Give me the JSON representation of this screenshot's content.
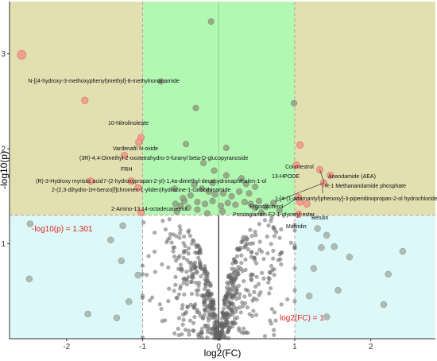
{
  "chart_data": {
    "type": "scatter",
    "xlabel": "log2(FC)",
    "ylabel": "-log10(p)",
    "xlim": [
      -2.75,
      2.85
    ],
    "ylim": [
      0,
      3.55
    ],
    "x_ticks": [
      -2,
      -1,
      0,
      1,
      2
    ],
    "y_ticks": [
      1,
      2,
      3
    ],
    "x_tick_labels": [
      "-2",
      "-1",
      "0",
      "1",
      "2"
    ],
    "y_tick_labels": [
      "1",
      "2",
      "3"
    ],
    "thresholds": {
      "p_line": 1.301,
      "p_label": "-log10(p) = 1.301",
      "fc_lines": [
        -1,
        1
      ],
      "fc_label": "log2(FC) = 1"
    },
    "colors": {
      "top_region": "#e2dfb0",
      "bottom_region": "#dcf8f8",
      "middle_band": "#b2f7b2",
      "highlight_point": "#f0a090",
      "significant_point": "#8e9a7e",
      "nonsignificant_point": "#6a6a6a",
      "threshold_line": "#c89a9a",
      "threshold_text": "#e0201a"
    },
    "highlighted": [
      {
        "name": "N-[(4-hydroxy-3-methoxyphenyl)methyl]-8-methylnonanamide",
        "x": -2.59,
        "y": 2.99
      },
      {
        "name": "10-Nitrolinoleate",
        "x": -1.76,
        "y": 2.51
      },
      {
        "name": "Vardenafil N-oxide",
        "x": -1.02,
        "y": 2.12
      },
      {
        "name": "(3R)-4,4-Dimethyl-2-oxotetrahydro-3-furanyl beta-D-glucopyranoside",
        "x": -1.05,
        "y": 2.07
      },
      {
        "name": "FRH",
        "x": -1.24,
        "y": 1.93
      },
      {
        "name": "(R)-3-Hydroxy myristic acid",
        "x": -1.68,
        "y": 1.66
      },
      {
        "name": "7-(2-hydroxypropan-2-yl)-1,4a-dimethyl-decahydronaphthalen-1-ol",
        "x": -1.15,
        "y": 1.66
      },
      {
        "name": "2-(2,3-dihydro-1H-benzo[f]chromen-1-yliden)hydrazine-1-carbothioamide",
        "x": -1.06,
        "y": 1.59
      },
      {
        "name": "2-Amino-13,14-octadecanetriol",
        "x": -1.02,
        "y": 1.33
      },
      {
        "name": "Coumestrol",
        "x": 1.07,
        "y": 2.04
      },
      {
        "name": "13-HPODE",
        "x": 1.02,
        "y": 1.83
      },
      {
        "name": "Anandamide (AEA)",
        "x": 1.33,
        "y": 1.78
      },
      {
        "name": "R-1 Methanandamide phosphate",
        "x": 1.47,
        "y": 1.72
      },
      {
        "name": "1-[4-(1-adamantyl)phenoxy]-3-piperidinopropan-2-ol hydrochloride",
        "x": 1.38,
        "y": 1.64
      },
      {
        "name": "Ergocalciferol",
        "x": 1.05,
        "y": 1.49
      },
      {
        "name": "Prostaglandin E2-1-glyceryl ester",
        "x": 1.07,
        "y": 1.44
      },
      {
        "name": "Betulin",
        "x": 1.16,
        "y": 1.42
      },
      {
        "name": "Malvidin",
        "x": 1.05,
        "y": 1.31
      }
    ],
    "significant_points": [
      [
        -0.1,
        3.34
      ],
      [
        -0.76,
        2.71
      ],
      [
        -0.3,
        2.43
      ],
      [
        0.99,
        2.48
      ],
      [
        -0.43,
        2.05
      ],
      [
        0.1,
        2.01
      ],
      [
        -0.06,
        1.77
      ],
      [
        0.1,
        1.72
      ],
      [
        0.3,
        1.69
      ],
      [
        -0.2,
        1.85
      ],
      [
        -0.32,
        1.62
      ],
      [
        -0.22,
        1.58
      ],
      [
        -0.13,
        1.55
      ],
      [
        -0.05,
        1.52
      ],
      [
        0.06,
        1.53
      ],
      [
        0.17,
        1.5
      ],
      [
        0.27,
        1.55
      ],
      [
        0.4,
        1.53
      ],
      [
        0.48,
        1.6
      ],
      [
        -0.37,
        1.51
      ],
      [
        -0.45,
        1.45
      ],
      [
        -0.57,
        1.42
      ],
      [
        -0.55,
        1.34
      ],
      [
        -0.4,
        1.38
      ],
      [
        -0.5,
        1.4
      ],
      [
        -0.47,
        1.48
      ],
      [
        -0.28,
        1.44
      ],
      [
        -0.18,
        1.42
      ],
      [
        -0.08,
        1.45
      ],
      [
        0.03,
        1.4
      ],
      [
        0.12,
        1.43
      ],
      [
        0.22,
        1.41
      ],
      [
        0.34,
        1.44
      ],
      [
        0.42,
        1.42
      ],
      [
        0.53,
        1.45
      ],
      [
        0.62,
        1.39
      ],
      [
        0.72,
        1.43
      ],
      [
        0.8,
        1.35
      ],
      [
        0.05,
        1.34
      ],
      [
        -0.15,
        1.32
      ],
      [
        0.56,
        1.33
      ],
      [
        -0.28,
        1.36
      ],
      [
        -0.08,
        1.64
      ],
      [
        0.36,
        1.63
      ],
      [
        -0.58,
        1.58
      ],
      [
        0.48,
        1.38
      ]
    ],
    "nonsignificant_points": [
      [
        -2.48,
        1.21
      ],
      [
        -2.49,
        0.63
      ],
      [
        -1.42,
        1.04
      ],
      [
        -1.72,
        0.26
      ],
      [
        -1.18,
        0.39
      ],
      [
        -1.34,
        0.22
      ],
      [
        1.3,
        1.16
      ],
      [
        1.42,
        1.09
      ],
      [
        1.72,
        0.86
      ],
      [
        2.23,
        0.68
      ],
      [
        2.42,
        0.92
      ],
      [
        2.17,
        0.36
      ],
      [
        1.42,
        0.23
      ],
      [
        1.57,
        0.51
      ],
      [
        1.25,
        0.74
      ],
      [
        1.19,
        0.45
      ],
      [
        1.35,
        0.96
      ],
      [
        -1.28,
        0.82
      ],
      [
        -1.06,
        0.67
      ],
      [
        -1.26,
        1.19
      ],
      [
        1.52,
        0.97
      ]
    ],
    "cloud": {
      "count": 620,
      "x_spread": 0.4,
      "y_max": 1.3,
      "seed": 7
    },
    "grid": false,
    "legend": "none"
  }
}
